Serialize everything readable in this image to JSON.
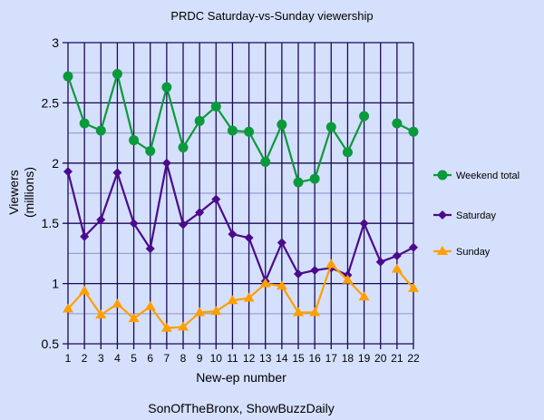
{
  "chart_data": {
    "type": "line",
    "title": "PRDC Saturday-vs-Sunday viewership",
    "xlabel": "New-ep number",
    "ylabel": "Viewers",
    "ylabel_units": "(millions)",
    "source": "SonOfTheBronx, ShowBuzzDaily",
    "x": [
      1,
      2,
      3,
      4,
      5,
      6,
      7,
      8,
      9,
      10,
      11,
      12,
      13,
      14,
      15,
      16,
      17,
      18,
      19,
      20,
      21,
      22
    ],
    "ylim": [
      0.5,
      3
    ],
    "yticks": [
      "0.5",
      "1",
      "1.5",
      "2",
      "2.5",
      "3"
    ],
    "ytick_values": [
      0.5,
      1,
      1.5,
      2,
      2.5,
      3
    ],
    "grid": true,
    "legend_placement": "right",
    "series": [
      {
        "name": "Weekend total",
        "color": "#0a9a3c",
        "marker": "circle",
        "values": [
          2.72,
          2.33,
          2.27,
          2.74,
          2.19,
          2.1,
          2.63,
          2.13,
          2.35,
          2.47,
          2.27,
          2.26,
          2.01,
          2.32,
          1.84,
          1.87,
          2.3,
          2.09,
          2.39,
          null,
          2.33,
          2.26
        ]
      },
      {
        "name": "Saturday",
        "color": "#4b0a8c",
        "marker": "diamond",
        "values": [
          1.93,
          1.39,
          1.53,
          1.92,
          1.5,
          1.29,
          2.0,
          1.49,
          1.59,
          1.7,
          1.41,
          1.38,
          1.02,
          1.34,
          1.08,
          1.11,
          1.13,
          1.07,
          1.5,
          1.18,
          1.23,
          1.3
        ]
      },
      {
        "name": "Sunday",
        "color": "#ff9f00",
        "marker": "triangle",
        "values": [
          0.79,
          0.94,
          0.74,
          0.83,
          0.71,
          0.81,
          0.63,
          0.64,
          0.76,
          0.77,
          0.86,
          0.88,
          1.0,
          0.98,
          0.76,
          0.76,
          1.16,
          1.03,
          0.89,
          null,
          1.12,
          0.96
        ]
      }
    ]
  }
}
